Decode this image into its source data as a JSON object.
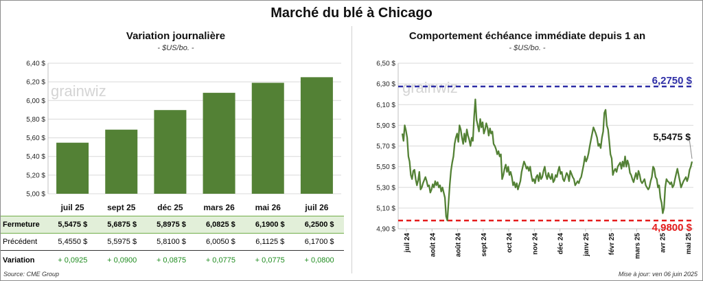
{
  "main_title": "Marché du blé à Chicago",
  "left": {
    "title": "Variation journalière",
    "subtitle": "- $US/bo. -"
  },
  "right": {
    "title": "Comportement échéance immédiate depuis 1 an",
    "subtitle": "- $US/bo. -"
  },
  "watermark": "grainwiz",
  "chart_data": [
    {
      "type": "bar",
      "title": "Variation journalière",
      "categories": [
        "juil 25",
        "sept 25",
        "déc 25",
        "mars 26",
        "mai 26",
        "juil 26"
      ],
      "values": [
        5.5475,
        5.6875,
        5.8975,
        6.0825,
        6.19,
        6.25
      ],
      "ylim": [
        5.0,
        6.4
      ],
      "y_ticks": [
        "5,00 $",
        "5,20 $",
        "5,40 $",
        "5,60 $",
        "5,80 $",
        "6,00 $",
        "6,20 $",
        "6,40 $"
      ],
      "grid": true,
      "bar_color": "#538135"
    },
    {
      "type": "line",
      "title": "Comportement échéance immédiate depuis 1 an",
      "x_labels": [
        "juil 24",
        "août 24",
        "août 24",
        "sept 24",
        "oct 24",
        "nov 24",
        "déc 24",
        "janv 25",
        "févr 25",
        "mars 25",
        "avr 25",
        "mai 25"
      ],
      "ylim": [
        4.9,
        6.5
      ],
      "y_ticks": [
        "4,90 $",
        "5,10 $",
        "5,30 $",
        "5,50 $",
        "5,70 $",
        "5,90 $",
        "6,10 $",
        "6,30 $",
        "6,50 $"
      ],
      "grid": true,
      "series": [
        {
          "color": "#538135",
          "values": [
            5.82,
            5.75,
            5.9,
            5.85,
            5.78,
            5.6,
            5.55,
            5.42,
            5.38,
            5.46,
            5.47,
            5.38,
            5.32,
            5.37,
            5.45,
            5.28,
            5.3,
            5.34,
            5.37,
            5.4,
            5.36,
            5.31,
            5.32,
            5.25,
            5.28,
            5.33,
            5.3,
            5.36,
            5.32,
            5.35,
            5.3,
            5.32,
            5.26,
            5.3,
            5.25,
            5.2,
            5.02,
            4.98,
            5.16,
            5.33,
            5.46,
            5.54,
            5.6,
            5.72,
            5.78,
            5.82,
            5.74,
            5.9,
            5.86,
            5.78,
            5.72,
            5.82,
            5.74,
            5.86,
            5.8,
            5.76,
            5.7,
            5.78,
            5.75,
            5.98,
            6.15,
            5.95,
            5.9,
            5.84,
            5.96,
            5.88,
            5.93,
            5.82,
            5.86,
            5.92,
            5.88,
            5.8,
            5.87,
            5.82,
            5.84,
            5.72,
            5.7,
            5.67,
            5.62,
            5.65,
            5.6,
            5.62,
            5.38,
            5.42,
            5.48,
            5.52,
            5.45,
            5.5,
            5.42,
            5.45,
            5.4,
            5.32,
            5.35,
            5.3,
            5.34,
            5.28,
            5.32,
            5.36,
            5.45,
            5.5,
            5.55,
            5.52,
            5.48,
            5.5,
            5.46,
            5.5,
            5.42,
            5.36,
            5.38,
            5.34,
            5.4,
            5.42,
            5.36,
            5.44,
            5.38,
            5.4,
            5.46,
            5.5,
            5.42,
            5.38,
            5.44,
            5.4,
            5.38,
            5.43,
            5.35,
            5.37,
            5.42,
            5.4,
            5.46,
            5.5,
            5.43,
            5.45,
            5.38,
            5.36,
            5.4,
            5.44,
            5.42,
            5.36,
            5.46,
            5.43,
            5.4,
            5.38,
            5.32,
            5.34,
            5.36,
            5.34,
            5.38,
            5.4,
            5.46,
            5.52,
            5.6,
            5.55,
            5.58,
            5.63,
            5.7,
            5.76,
            5.82,
            5.88,
            5.85,
            5.82,
            5.78,
            5.7,
            5.72,
            5.68,
            5.78,
            5.84,
            6.02,
            6.05,
            5.9,
            5.86,
            5.75,
            5.62,
            5.58,
            5.42,
            5.46,
            5.48,
            5.45,
            5.5,
            5.52,
            5.54,
            5.48,
            5.55,
            5.5,
            5.6,
            5.5,
            5.56,
            5.52,
            5.44,
            5.42,
            5.38,
            5.35,
            5.4,
            5.44,
            5.38,
            5.46,
            5.42,
            5.36,
            5.34,
            5.36,
            5.38,
            5.32,
            5.3,
            5.28,
            5.3,
            5.36,
            5.4,
            5.5,
            5.48,
            5.4,
            5.38,
            5.3,
            5.32,
            5.2,
            5.15,
            5.05,
            5.1,
            5.3,
            5.38,
            5.36,
            5.35,
            5.33,
            5.35,
            5.3,
            5.32,
            5.38,
            5.43,
            5.48,
            5.42,
            5.36,
            5.3,
            5.33,
            5.36,
            5.38,
            5.4,
            5.36,
            5.4,
            5.47,
            5.5,
            5.55
          ]
        }
      ],
      "reference_lines": [
        {
          "value": 6.275,
          "label": "6,2750 $",
          "color": "#2e2ea6"
        },
        {
          "value": 4.98,
          "label": "4,9800 $",
          "color": "#e51b1b"
        }
      ],
      "last_value_label": "5,5475 $"
    }
  ],
  "table": {
    "rows": [
      {
        "label": "Fermeture",
        "cells": [
          "5,5475  $",
          "5,6875  $",
          "5,8975  $",
          "6,0825  $",
          "6,1900  $",
          "6,2500  $"
        ]
      },
      {
        "label": "Précédent",
        "cells": [
          "5,4550  $",
          "5,5975  $",
          "5,8100  $",
          "6,0050  $",
          "6,1125  $",
          "6,1700  $"
        ]
      },
      {
        "label": "Variation",
        "cells": [
          "+ 0,0925",
          "+ 0,0900",
          "+ 0,0875",
          "+ 0,0775",
          "+ 0,0775",
          "+ 0,0800"
        ]
      }
    ]
  },
  "footer": {
    "source": "Source: CME Group",
    "updated": "Mise à jour: ven 06 juin 2025"
  }
}
